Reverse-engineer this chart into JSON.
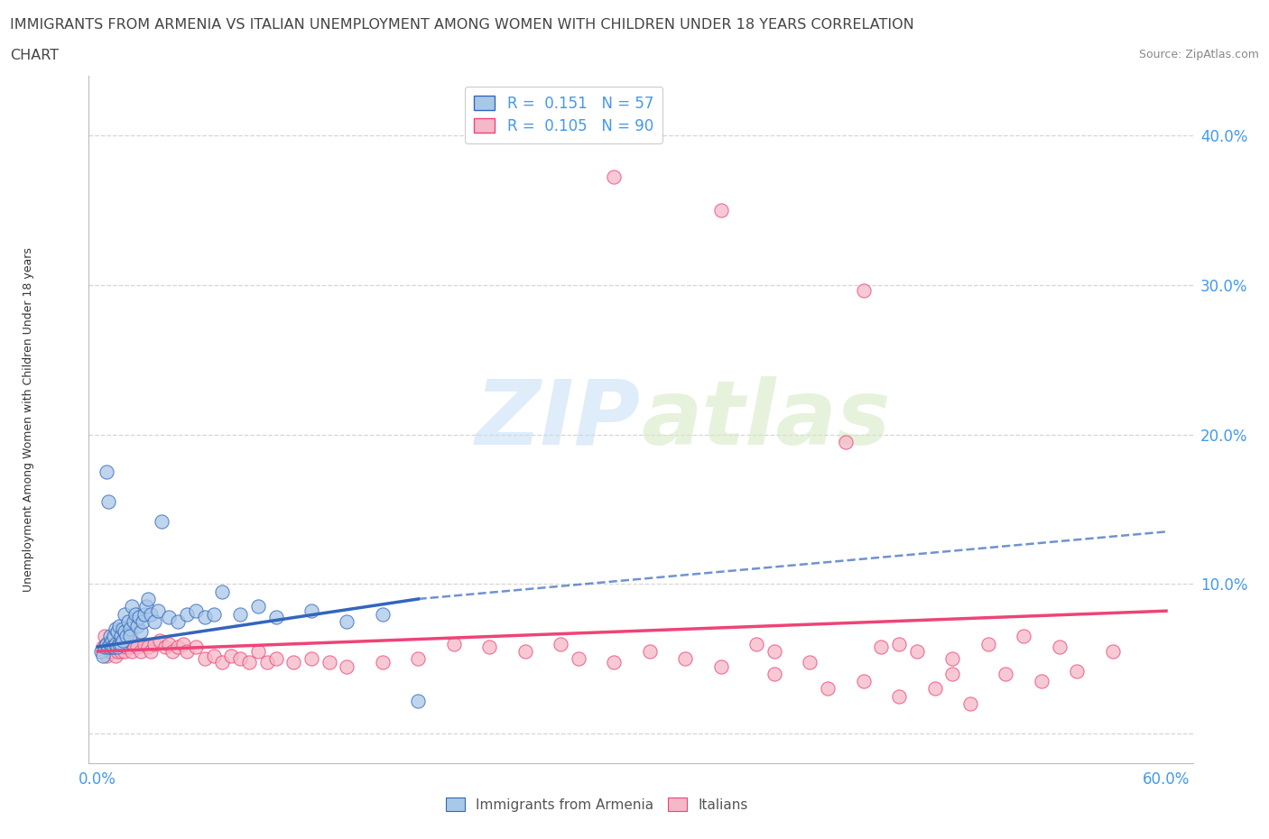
{
  "title_line1": "IMMIGRANTS FROM ARMENIA VS ITALIAN UNEMPLOYMENT AMONG WOMEN WITH CHILDREN UNDER 18 YEARS CORRELATION",
  "title_line2": "CHART",
  "source_text": "Source: ZipAtlas.com",
  "ylabel": "Unemployment Among Women with Children Under 18 years",
  "xlim": [
    -0.005,
    0.615
  ],
  "ylim": [
    -0.02,
    0.44
  ],
  "xtick_positions": [
    0.0,
    0.1,
    0.2,
    0.3,
    0.4,
    0.5,
    0.6
  ],
  "xticklabels": [
    "0.0%",
    "",
    "",
    "",
    "",
    "",
    "60.0%"
  ],
  "ytick_positions": [
    0.0,
    0.1,
    0.2,
    0.3,
    0.4
  ],
  "yticklabels": [
    "",
    "10.0%",
    "20.0%",
    "30.0%",
    "40.0%"
  ],
  "legend_labels": [
    "Immigrants from Armenia",
    "Italians"
  ],
  "R_armenia": 0.151,
  "N_armenia": 57,
  "R_italians": 0.105,
  "N_italians": 90,
  "color_armenia": "#a8c8e8",
  "color_italians": "#f5b8c8",
  "color_trendline_armenia": "#3366bb",
  "color_trendline_italians": "#ee4477",
  "watermark_zip": "ZIP",
  "watermark_atlas": "atlas",
  "background_color": "#ffffff",
  "title_color": "#444444",
  "title_fontsize": 11.5,
  "axis_tick_color": "#4499ee",
  "ylabel_color": "#333333",
  "blue_scatter_x": [
    0.002,
    0.003,
    0.004,
    0.005,
    0.005,
    0.006,
    0.006,
    0.007,
    0.007,
    0.008,
    0.008,
    0.009,
    0.009,
    0.01,
    0.01,
    0.011,
    0.011,
    0.012,
    0.012,
    0.013,
    0.013,
    0.014,
    0.014,
    0.015,
    0.015,
    0.016,
    0.017,
    0.018,
    0.018,
    0.019,
    0.02,
    0.021,
    0.022,
    0.023,
    0.024,
    0.025,
    0.026,
    0.027,
    0.028,
    0.03,
    0.032,
    0.034,
    0.036,
    0.04,
    0.045,
    0.05,
    0.055,
    0.06,
    0.065,
    0.07,
    0.08,
    0.09,
    0.1,
    0.12,
    0.14,
    0.16,
    0.18
  ],
  "blue_scatter_y": [
    0.055,
    0.052,
    0.058,
    0.175,
    0.06,
    0.155,
    0.058,
    0.065,
    0.06,
    0.062,
    0.058,
    0.065,
    0.058,
    0.07,
    0.06,
    0.068,
    0.058,
    0.072,
    0.06,
    0.065,
    0.06,
    0.07,
    0.062,
    0.068,
    0.08,
    0.065,
    0.075,
    0.07,
    0.065,
    0.085,
    0.075,
    0.08,
    0.072,
    0.078,
    0.068,
    0.075,
    0.08,
    0.085,
    0.09,
    0.08,
    0.075,
    0.082,
    0.142,
    0.078,
    0.075,
    0.08,
    0.082,
    0.078,
    0.08,
    0.095,
    0.08,
    0.085,
    0.078,
    0.082,
    0.075,
    0.08,
    0.022
  ],
  "pink_scatter_x": [
    0.003,
    0.004,
    0.005,
    0.005,
    0.006,
    0.007,
    0.007,
    0.008,
    0.008,
    0.009,
    0.009,
    0.01,
    0.01,
    0.011,
    0.011,
    0.012,
    0.012,
    0.013,
    0.013,
    0.014,
    0.015,
    0.015,
    0.016,
    0.017,
    0.018,
    0.019,
    0.02,
    0.022,
    0.024,
    0.026,
    0.028,
    0.03,
    0.032,
    0.035,
    0.038,
    0.04,
    0.042,
    0.045,
    0.048,
    0.05,
    0.055,
    0.06,
    0.065,
    0.07,
    0.075,
    0.08,
    0.085,
    0.09,
    0.095,
    0.1,
    0.11,
    0.12,
    0.13,
    0.14,
    0.16,
    0.18,
    0.2,
    0.22,
    0.24,
    0.26,
    0.27,
    0.29,
    0.31,
    0.33,
    0.35,
    0.37,
    0.38,
    0.4,
    0.42,
    0.44,
    0.45,
    0.46,
    0.48,
    0.5,
    0.52,
    0.54,
    0.29,
    0.35,
    0.38,
    0.41,
    0.43,
    0.45,
    0.47,
    0.49,
    0.51,
    0.53,
    0.55,
    0.57,
    0.43,
    0.48
  ],
  "pink_scatter_y": [
    0.058,
    0.065,
    0.052,
    0.06,
    0.058,
    0.055,
    0.06,
    0.055,
    0.062,
    0.058,
    0.06,
    0.052,
    0.058,
    0.06,
    0.055,
    0.062,
    0.058,
    0.06,
    0.055,
    0.058,
    0.06,
    0.055,
    0.058,
    0.062,
    0.058,
    0.055,
    0.06,
    0.058,
    0.055,
    0.06,
    0.058,
    0.055,
    0.06,
    0.062,
    0.058,
    0.06,
    0.055,
    0.058,
    0.06,
    0.055,
    0.058,
    0.05,
    0.052,
    0.048,
    0.052,
    0.05,
    0.048,
    0.055,
    0.048,
    0.05,
    0.048,
    0.05,
    0.048,
    0.045,
    0.048,
    0.05,
    0.06,
    0.058,
    0.055,
    0.06,
    0.05,
    0.048,
    0.055,
    0.05,
    0.045,
    0.06,
    0.055,
    0.048,
    0.195,
    0.058,
    0.06,
    0.055,
    0.05,
    0.06,
    0.065,
    0.058,
    0.372,
    0.35,
    0.04,
    0.03,
    0.035,
    0.025,
    0.03,
    0.02,
    0.04,
    0.035,
    0.042,
    0.055,
    0.296,
    0.04
  ],
  "blue_trend_x0": 0.0,
  "blue_trend_x_solid_end": 0.18,
  "blue_trend_x_dash_end": 0.6,
  "blue_trend_y0": 0.058,
  "blue_trend_y_solid_end": 0.09,
  "blue_trend_y_dash_end": 0.135,
  "pink_trend_x0": 0.0,
  "pink_trend_x_end": 0.6,
  "pink_trend_y0": 0.055,
  "pink_trend_y_end": 0.082
}
